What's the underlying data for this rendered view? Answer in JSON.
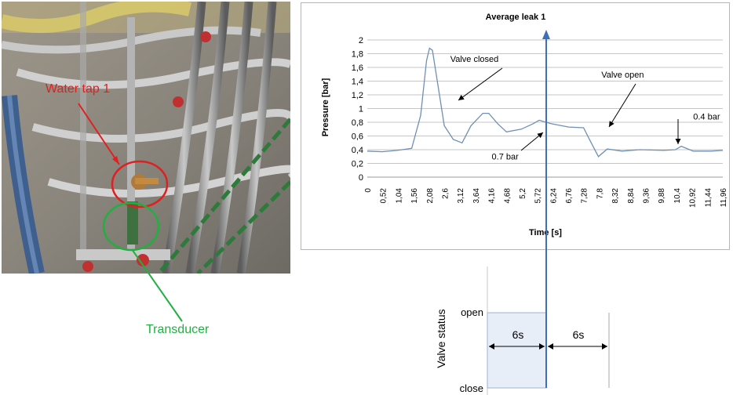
{
  "photo": {
    "water_tap_label": "Water tap 1",
    "transducer_label": "Transducer",
    "water_tap_color": "#e02020",
    "transducer_color": "#20b040"
  },
  "chart_data": [
    {
      "type": "line",
      "title": "Average leak 1",
      "xlabel": "Time [s]",
      "ylabel": "Pressure [bar]",
      "ylim": [
        0,
        2
      ],
      "y_ticks": [
        "0",
        "0,2",
        "0,4",
        "0,6",
        "0,8",
        "1",
        "1,2",
        "1,4",
        "1,6",
        "1,8",
        "2"
      ],
      "x_ticks": [
        "0",
        "0,52",
        "1,04",
        "1,56",
        "2,08",
        "2,6",
        "3,12",
        "3,64",
        "4,16",
        "4,68",
        "5,2",
        "5,72",
        "6,24",
        "6,76",
        "7,28",
        "7,8",
        "8,32",
        "8,84",
        "9,36",
        "9,88",
        "10,4",
        "10,92",
        "11,44",
        "11,96"
      ],
      "grid": true,
      "line_color": "#6f8fb5",
      "x": [
        0,
        0.5,
        1,
        1.5,
        1.8,
        2,
        2.1,
        2.2,
        2.4,
        2.6,
        2.9,
        3.2,
        3.5,
        3.9,
        4.1,
        4.4,
        4.7,
        5.2,
        5.6,
        5.8,
        6.2,
        6.8,
        7.3,
        7.5,
        7.8,
        8.1,
        8.6,
        9.2,
        10,
        10.4,
        10.6,
        11,
        11.6,
        12
      ],
      "y": [
        0.38,
        0.37,
        0.39,
        0.42,
        0.9,
        1.7,
        1.88,
        1.85,
        1.3,
        0.75,
        0.55,
        0.5,
        0.75,
        0.93,
        0.93,
        0.78,
        0.66,
        0.7,
        0.78,
        0.83,
        0.78,
        0.73,
        0.72,
        0.55,
        0.3,
        0.41,
        0.38,
        0.4,
        0.39,
        0.4,
        0.45,
        0.38,
        0.38,
        0.39
      ],
      "valve_open_time": 6,
      "annotations": [
        {
          "text": "Valve closed",
          "x": 2.8,
          "y": 1.68
        },
        {
          "text": "Valve open",
          "x": 7.9,
          "y": 1.45
        },
        {
          "text": "0.4 bar",
          "x": 11,
          "y": 0.84
        },
        {
          "text": "0.7 bar",
          "x": 4.2,
          "y": 0.26
        }
      ]
    },
    {
      "type": "step",
      "ylabel": "Valve status",
      "y_categories": [
        "close",
        "open"
      ],
      "segments": [
        {
          "label": "6s",
          "from": 0,
          "to": 6,
          "state": "open"
        },
        {
          "label": "6s",
          "from": 6,
          "to": 12,
          "state": "close"
        }
      ]
    }
  ]
}
